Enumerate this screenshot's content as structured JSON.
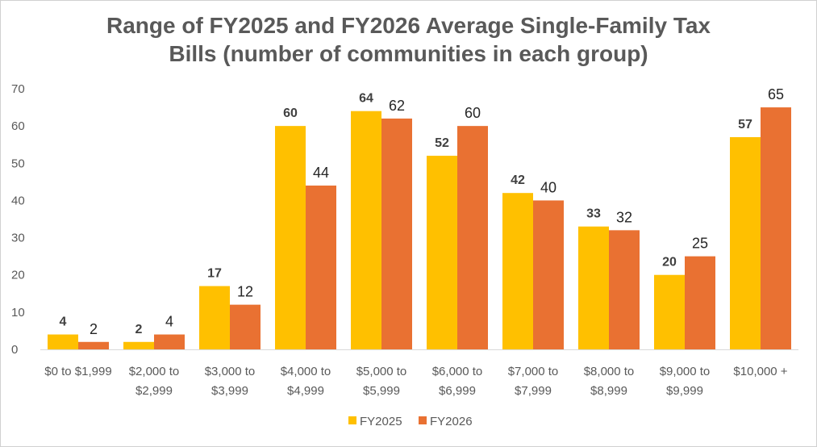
{
  "chart_data": {
    "type": "bar",
    "title": "Range of FY2025 and FY2026 Average Single-Family Tax Bills (number of communities in each group)",
    "title_lines": [
      "Range of FY2025 and FY2026 Average Single-Family Tax",
      "Bills (number of communities in each group)"
    ],
    "categories": [
      "$0 to $1,999",
      "$2,000 to $2,999",
      "$3,000 to $3,999",
      "$4,000 to $4,999",
      "$5,000 to $5,999",
      "$6,000 to $6,999",
      "$7,000 to $7,999",
      "$8,000 to $8,999",
      "$9,000 to $9,999",
      "$10,000 +"
    ],
    "category_lines": [
      [
        "$0 to $1,999"
      ],
      [
        "$2,000 to",
        "$2,999"
      ],
      [
        "$3,000 to",
        "$3,999"
      ],
      [
        "$4,000 to",
        "$4,999"
      ],
      [
        "$5,000 to",
        "$5,999"
      ],
      [
        "$6,000 to",
        "$6,999"
      ],
      [
        "$7,000 to",
        "$7,999"
      ],
      [
        "$8,000 to",
        "$8,999"
      ],
      [
        "$9,000 to",
        "$9,999"
      ],
      [
        "$10,000 +"
      ]
    ],
    "series": [
      {
        "name": "FY2025",
        "color": "#FFC000",
        "values": [
          4,
          2,
          17,
          60,
          64,
          52,
          42,
          33,
          20,
          57
        ]
      },
      {
        "name": "FY2026",
        "color": "#E97132",
        "values": [
          2,
          4,
          12,
          44,
          62,
          60,
          40,
          32,
          25,
          65
        ]
      }
    ],
    "xlabel": "",
    "ylabel": "",
    "ylim": [
      0,
      70
    ],
    "yticks": [
      0,
      10,
      20,
      30,
      40,
      50,
      60,
      70
    ],
    "grid": false,
    "data_labels": true,
    "legend_position": "bottom"
  }
}
